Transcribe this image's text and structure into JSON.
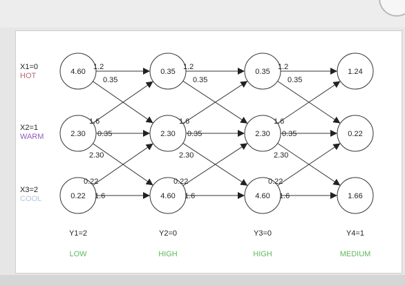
{
  "inputs": [
    {
      "label": "X1=0",
      "word": "HOT",
      "word_color": "#b36a6a"
    },
    {
      "label": "X2=1",
      "word": "WARM",
      "word_color": "#8e5bbf"
    },
    {
      "label": "X3=2",
      "word": "COOL",
      "word_color": "#b4c6de"
    }
  ],
  "columns": [
    {
      "nodes": [
        "4.60",
        "2.30",
        "0.22"
      ],
      "y_label": "Y1=2",
      "state": "LOW"
    },
    {
      "nodes": [
        "0.35",
        "2.30",
        "4.60"
      ],
      "y_label": "Y2=0",
      "state": "HIGH"
    },
    {
      "nodes": [
        "0.35",
        "2.30",
        "4.60"
      ],
      "y_label": "Y3=0",
      "state": "HIGH"
    },
    {
      "nodes": [
        "1.24",
        "0.22",
        "1.66"
      ],
      "y_label": "Y4=1",
      "state": "MEDIUM"
    }
  ],
  "edge_labels": {
    "top_straight": "1.2",
    "top_diag": "0.35",
    "mid_up": "1.6",
    "mid_straight": "0.35",
    "mid_down": "2.30",
    "bot_up": "0.22",
    "bot_straight": "1.6"
  },
  "colors": {
    "state_green": "#5cb85c",
    "line": "#333333",
    "node_fill": "#ffffff"
  }
}
